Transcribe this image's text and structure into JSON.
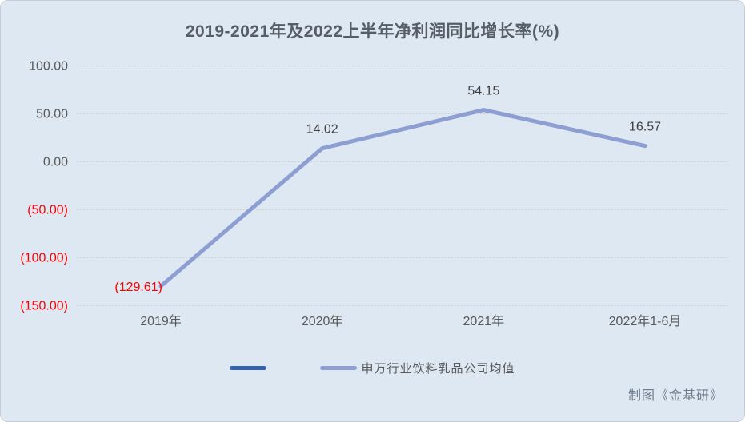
{
  "title": "2019-2021年及2022上半年净利润同比增长率(%)",
  "watermark": "制图《金基研》",
  "colors": {
    "background": "#dde8f3",
    "series_line": "#8c9ed2",
    "legend_dark": "#3563ae",
    "negative_text": "#ff0000",
    "axis_text": "#595959",
    "data_label_text": "#404040",
    "gridline": "#cfcfcf",
    "title_text": "#555e66",
    "watermark_text": "#6e7c8b"
  },
  "legend": {
    "items": [
      {
        "label": "",
        "color_key": "legend_dark"
      },
      {
        "label": "申万行业饮料乳品公司均值",
        "color_key": "series_line"
      }
    ]
  },
  "chart_data": {
    "type": "line",
    "title": "2019-2021年及2022上半年净利润同比增长率(%)",
    "categories": [
      "2019年",
      "2020年",
      "2021年",
      "2022年1-6月"
    ],
    "series": [
      {
        "name": "申万行业饮料乳品公司均值",
        "values": [
          -129.61,
          14.02,
          54.15,
          16.57
        ]
      }
    ],
    "data_labels": [
      "(129.61)",
      "14.02",
      "54.15",
      "16.57"
    ],
    "y_ticks": [
      {
        "label": "100.00",
        "value": 100
      },
      {
        "label": "50.00",
        "value": 50
      },
      {
        "label": "0.00",
        "value": 0
      },
      {
        "label": "(50.00)",
        "value": -50
      },
      {
        "label": "(100.00)",
        "value": -100
      },
      {
        "label": "(150.00)",
        "value": -150
      }
    ],
    "ylim": [
      -150,
      100
    ],
    "xlabel": "",
    "ylabel": "",
    "grid": true,
    "legend_position": "bottom",
    "annotations": [
      "制图《金基研》"
    ]
  }
}
